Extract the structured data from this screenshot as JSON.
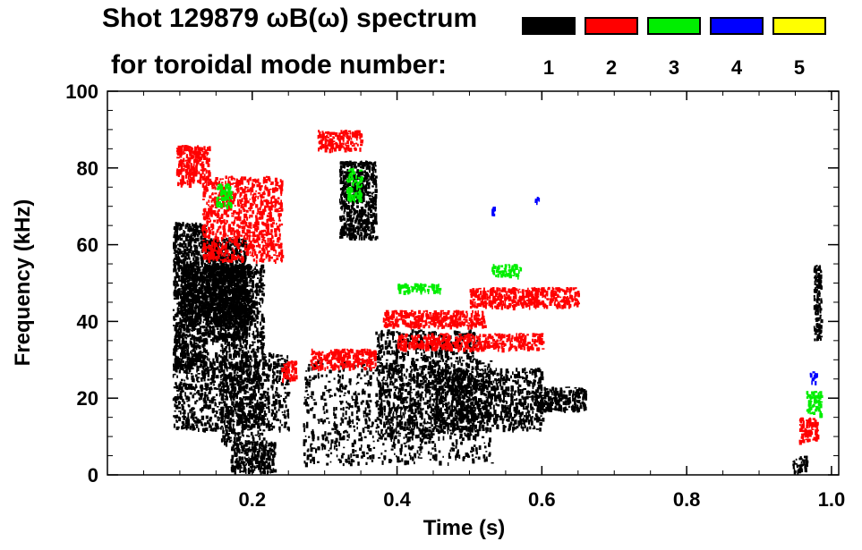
{
  "chart_data": {
    "type": "scatter",
    "title_line1": "Shot 129879 ωB(ω) spectrum",
    "title_line2": "for toroidal mode number:",
    "xlabel": "Time (s)",
    "ylabel": "Frequency (kHz)",
    "xlim": [
      0.0,
      1.01
    ],
    "ylim": [
      0,
      100
    ],
    "xticks": [
      0.2,
      0.4,
      0.6,
      0.8,
      1.0
    ],
    "xtick_labels": [
      "0.2",
      "0.4",
      "0.6",
      "0.8",
      "1.0"
    ],
    "yticks": [
      0,
      20,
      40,
      60,
      80,
      100
    ],
    "ytick_labels": [
      "0",
      "20",
      "40",
      "60",
      "80",
      "100"
    ],
    "grid": false,
    "legend_placement": "top-right",
    "legend": [
      {
        "label": "1",
        "color": "#000000"
      },
      {
        "label": "2",
        "color": "#ff0000"
      },
      {
        "label": "3",
        "color": "#00ee00"
      },
      {
        "label": "4",
        "color": "#0000ff"
      },
      {
        "label": "5",
        "color": "#ffff00"
      }
    ],
    "series": [
      {
        "name": "1",
        "color": "#000000",
        "regions": [
          [
            0.09,
            0.135,
            28,
            66
          ],
          [
            0.1,
            0.2,
            40,
            55
          ],
          [
            0.135,
            0.19,
            35,
            62
          ],
          [
            0.155,
            0.215,
            8,
            55
          ],
          [
            0.17,
            0.23,
            1,
            9
          ],
          [
            0.09,
            0.25,
            12,
            32
          ],
          [
            0.32,
            0.37,
            62,
            82
          ],
          [
            0.27,
            0.53,
            3,
            30
          ],
          [
            0.37,
            0.51,
            10,
            38
          ],
          [
            0.45,
            0.6,
            12,
            28
          ],
          [
            0.59,
            0.66,
            17,
            23
          ],
          [
            0.946,
            0.965,
            1,
            5
          ],
          [
            0.975,
            0.985,
            35,
            55
          ]
        ]
      },
      {
        "name": "2",
        "color": "#ff0000",
        "regions": [
          [
            0.095,
            0.14,
            76,
            86
          ],
          [
            0.13,
            0.24,
            56,
            78
          ],
          [
            0.29,
            0.35,
            85,
            90
          ],
          [
            0.28,
            0.37,
            28,
            33
          ],
          [
            0.38,
            0.52,
            39,
            43
          ],
          [
            0.5,
            0.65,
            44,
            49
          ],
          [
            0.4,
            0.6,
            33,
            37
          ],
          [
            0.955,
            0.98,
            9,
            15
          ],
          [
            0.24,
            0.26,
            25,
            30
          ]
        ]
      },
      {
        "name": "3",
        "color": "#00ee00",
        "regions": [
          [
            0.15,
            0.17,
            70,
            76
          ],
          [
            0.965,
            0.985,
            16,
            22
          ],
          [
            0.53,
            0.57,
            52,
            55
          ],
          [
            0.4,
            0.46,
            48,
            50
          ],
          [
            0.33,
            0.35,
            72,
            80
          ]
        ]
      },
      {
        "name": "4",
        "color": "#0000ff",
        "regions": [
          [
            0.97,
            0.978,
            24,
            27
          ],
          [
            0.59,
            0.596,
            71,
            73
          ],
          [
            0.53,
            0.536,
            68,
            70
          ]
        ]
      },
      {
        "name": "5",
        "color": "#ffff00",
        "regions": []
      }
    ]
  }
}
